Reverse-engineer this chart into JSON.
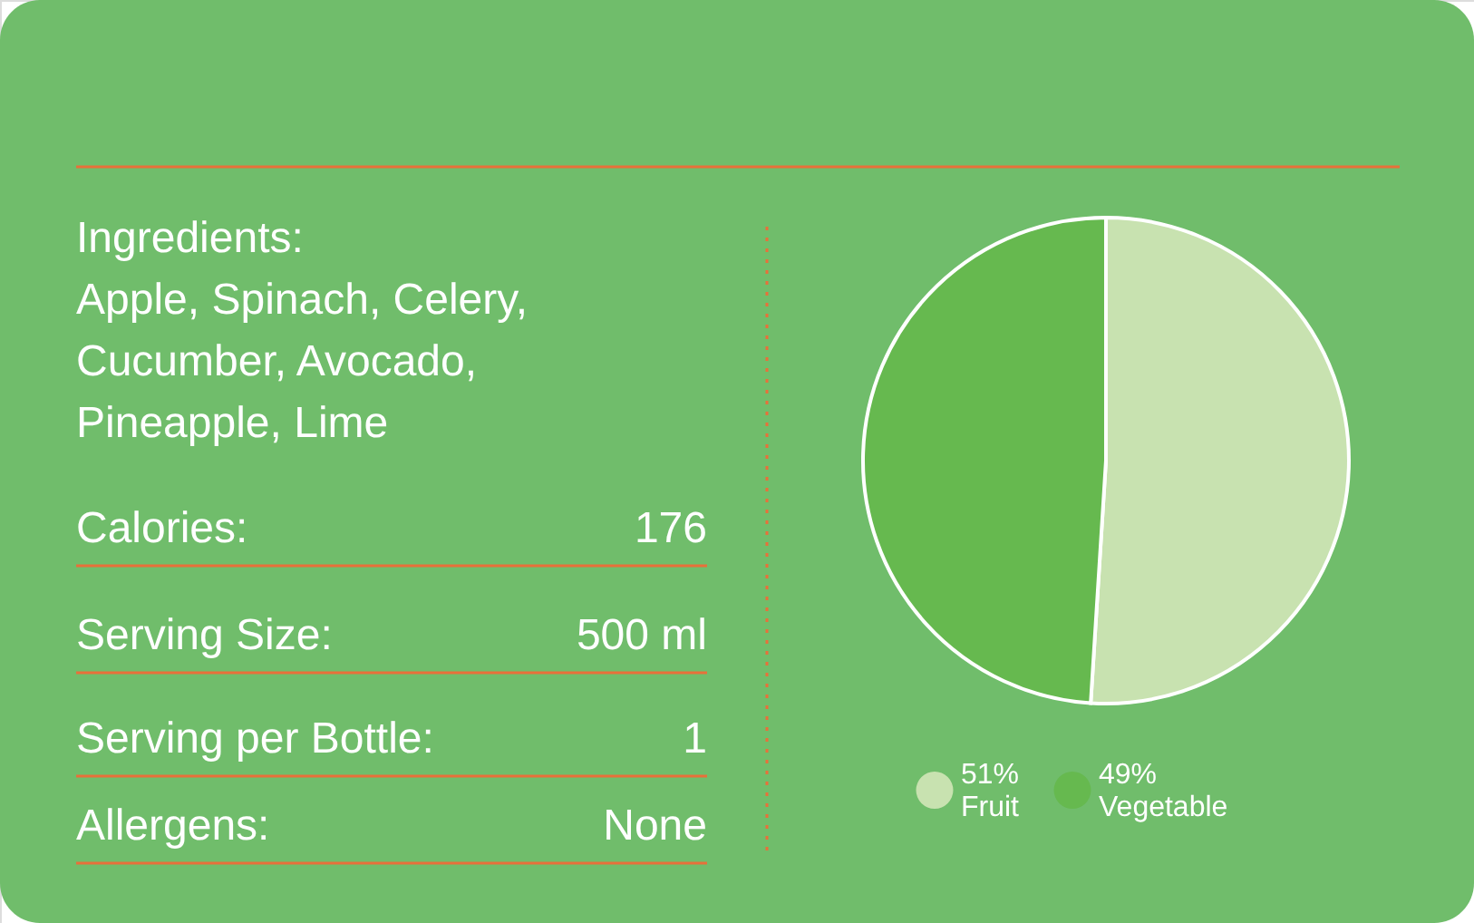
{
  "chart_data": {
    "type": "pie",
    "categories": [
      "Fruit",
      "Vegetable"
    ],
    "values": [
      51,
      49
    ],
    "value_labels": [
      "51%",
      "49%"
    ],
    "colors": [
      "#c8e2b0",
      "#66b94f"
    ],
    "legend": "bottom",
    "annotations": [
      "Ingredients:",
      "Apple, Spinach, Celery,",
      "Cucumber, Avocado,",
      "Pineapple, Lime",
      "Calories:",
      "176",
      "Serving Size:",
      "500 ml",
      "Serving per Bottle:",
      "1",
      "Allergens:",
      "None"
    ]
  }
}
